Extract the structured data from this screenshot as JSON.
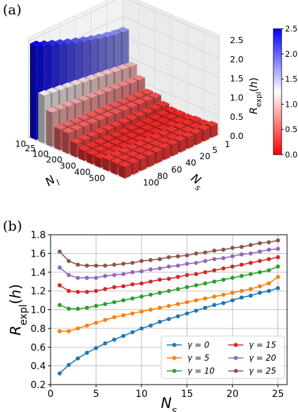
{
  "panels": {
    "a": "(a)",
    "b": "(b)"
  },
  "chart_data": [
    {
      "type": "bar3d",
      "panel": "(a)",
      "x_name": "N_l",
      "y_name": "N_s",
      "z_name": "R_expl(h)",
      "xlabel_main": "N",
      "xlabel_sub": "l",
      "ylabel_main": "N",
      "ylabel_sub": "s",
      "zlabel_main": "R",
      "zlabel_sub": "expl",
      "zlabel_rest": "(h)",
      "x_ticks": [
        "10",
        "25",
        "100",
        "200",
        "300",
        "400",
        "500"
      ],
      "y_ticks": [
        "1",
        "5",
        "20",
        "40",
        "60",
        "80",
        "100"
      ],
      "z_ticks": [
        "0.0",
        "0.5",
        "1.0",
        "1.5",
        "2.0",
        "2.5"
      ],
      "zlim": [
        0,
        2.5
      ],
      "colorbar_ticks": [
        "0.0",
        "0.5",
        "1.0",
        "1.5",
        "2.0",
        "2.5"
      ],
      "colorbar_range": [
        0,
        2.5
      ],
      "colormap": [
        "#ff0000",
        "#ffffff",
        "#0000ff"
      ],
      "grid": "12x12 bars",
      "value_trend": {
        "low_N_l_max_N_s": 2.45,
        "low_N_l_min_N_s": 1.75,
        "high_N_l": 0.3,
        "bulk_floor": 0.25
      }
    },
    {
      "type": "line",
      "panel": "(b)",
      "xlabel_main": "N",
      "xlabel_sub": "s",
      "ylabel_main": "R",
      "ylabel_sub": "expl",
      "ylabel_rest": "(h)",
      "xlim": [
        0,
        26
      ],
      "ylim": [
        0.2,
        1.8
      ],
      "x_ticks": [
        "0",
        "5",
        "10",
        "15",
        "20",
        "25"
      ],
      "y_ticks": [
        "0.2",
        "0.4",
        "0.6",
        "0.8",
        "1.0",
        "1.2",
        "1.4",
        "1.6",
        "1.8"
      ],
      "grid": true,
      "legend_position": "lower-right",
      "x": [
        1,
        2,
        3,
        4,
        5,
        6,
        7,
        8,
        9,
        10,
        11,
        12,
        13,
        14,
        15,
        16,
        17,
        18,
        19,
        20,
        21,
        22,
        23,
        24,
        25
      ],
      "series": [
        {
          "name": "γ = 0",
          "color": "#1f77b4",
          "values": [
            0.32,
            0.41,
            0.48,
            0.54,
            0.59,
            0.64,
            0.68,
            0.72,
            0.76,
            0.8,
            0.83,
            0.87,
            0.9,
            0.93,
            0.96,
            0.99,
            1.02,
            1.05,
            1.07,
            1.1,
            1.13,
            1.15,
            1.18,
            1.2,
            1.23
          ]
        },
        {
          "name": "γ = 5",
          "color": "#ff7f0e",
          "values": [
            0.77,
            0.77,
            0.8,
            0.83,
            0.86,
            0.89,
            0.92,
            0.94,
            0.96,
            0.98,
            1.0,
            1.02,
            1.04,
            1.06,
            1.08,
            1.1,
            1.12,
            1.14,
            1.16,
            1.18,
            1.2,
            1.22,
            1.25,
            1.28,
            1.35
          ]
        },
        {
          "name": "γ = 10",
          "color": "#2ca02c",
          "values": [
            1.05,
            1.01,
            1.01,
            1.02,
            1.04,
            1.06,
            1.08,
            1.1,
            1.12,
            1.14,
            1.16,
            1.18,
            1.2,
            1.22,
            1.24,
            1.26,
            1.28,
            1.3,
            1.32,
            1.34,
            1.36,
            1.38,
            1.4,
            1.42,
            1.46
          ]
        },
        {
          "name": "γ = 15",
          "color": "#d62728",
          "values": [
            1.26,
            1.2,
            1.19,
            1.19,
            1.2,
            1.22,
            1.24,
            1.25,
            1.27,
            1.28,
            1.3,
            1.32,
            1.33,
            1.35,
            1.37,
            1.38,
            1.4,
            1.42,
            1.44,
            1.46,
            1.48,
            1.5,
            1.52,
            1.54,
            1.56
          ]
        },
        {
          "name": "γ = 20",
          "color": "#9467bd",
          "values": [
            1.45,
            1.37,
            1.34,
            1.34,
            1.34,
            1.36,
            1.37,
            1.38,
            1.4,
            1.41,
            1.43,
            1.44,
            1.46,
            1.47,
            1.49,
            1.5,
            1.52,
            1.54,
            1.55,
            1.57,
            1.59,
            1.6,
            1.62,
            1.64,
            1.65
          ]
        },
        {
          "name": "γ = 25",
          "color": "#8c564b",
          "values": [
            1.62,
            1.52,
            1.48,
            1.47,
            1.47,
            1.47,
            1.48,
            1.49,
            1.5,
            1.52,
            1.53,
            1.54,
            1.56,
            1.57,
            1.58,
            1.6,
            1.61,
            1.63,
            1.64,
            1.66,
            1.67,
            1.69,
            1.71,
            1.72,
            1.74
          ]
        }
      ]
    }
  ]
}
